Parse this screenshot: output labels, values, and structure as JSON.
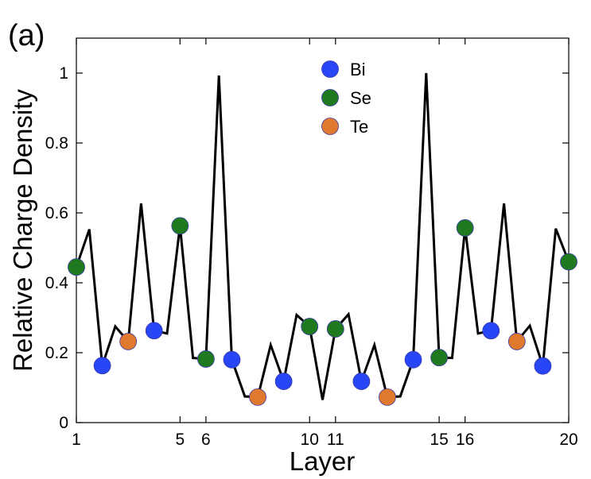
{
  "panel_label": "(a)",
  "chart_data": {
    "type": "line",
    "xlabel": "Layer",
    "ylabel": "Relative Charge Density",
    "xlim": [
      1,
      20
    ],
    "ylim": [
      0,
      1.1
    ],
    "xticks": [
      "1",
      "5",
      "6",
      "10",
      "11",
      "15",
      "16",
      "20"
    ],
    "xtick_values": [
      1,
      5,
      6,
      10,
      11,
      15,
      16,
      20
    ],
    "yticks": [
      "0",
      "0.2",
      "0.4",
      "0.6",
      "0.8",
      "1"
    ],
    "ytick_values": [
      0,
      0.2,
      0.4,
      0.6,
      0.8,
      1.0
    ],
    "grid": false,
    "legend_position": "top-center",
    "line": {
      "color": "#000000",
      "x": [
        1,
        1.5,
        2,
        2.5,
        3,
        3.5,
        4,
        4.5,
        5,
        5.5,
        6,
        6.5,
        7,
        7.5,
        8,
        8.5,
        9,
        9.5,
        10,
        10.5,
        11,
        11.5,
        12,
        12.5,
        13,
        13.5,
        14,
        14.5,
        15,
        15.5,
        16,
        16.5,
        17,
        17.5,
        18,
        18.5,
        19,
        19.5,
        20
      ],
      "y": [
        0.445,
        0.553,
        0.163,
        0.275,
        0.232,
        0.627,
        0.263,
        0.255,
        0.563,
        0.185,
        0.182,
        0.993,
        0.18,
        0.075,
        0.073,
        0.222,
        0.118,
        0.308,
        0.275,
        0.065,
        0.268,
        0.31,
        0.118,
        0.222,
        0.073,
        0.075,
        0.18,
        1.0,
        0.186,
        0.185,
        0.557,
        0.255,
        0.263,
        0.627,
        0.232,
        0.277,
        0.162,
        0.555,
        0.46
      ]
    },
    "series": [
      {
        "name": "Bi",
        "color": "#2846f5",
        "x": [
          2,
          4,
          7,
          9,
          12,
          14,
          17,
          19
        ],
        "y": [
          0.163,
          0.263,
          0.18,
          0.118,
          0.118,
          0.18,
          0.263,
          0.162
        ]
      },
      {
        "name": "Se",
        "color": "#1f7a1f",
        "x": [
          1,
          5,
          6,
          10,
          11,
          15,
          16,
          20
        ],
        "y": [
          0.445,
          0.563,
          0.182,
          0.275,
          0.268,
          0.186,
          0.557,
          0.46
        ]
      },
      {
        "name": "Te",
        "color": "#e0782e",
        "x": [
          3,
          8,
          13,
          18
        ],
        "y": [
          0.232,
          0.073,
          0.073,
          0.232
        ]
      }
    ]
  }
}
